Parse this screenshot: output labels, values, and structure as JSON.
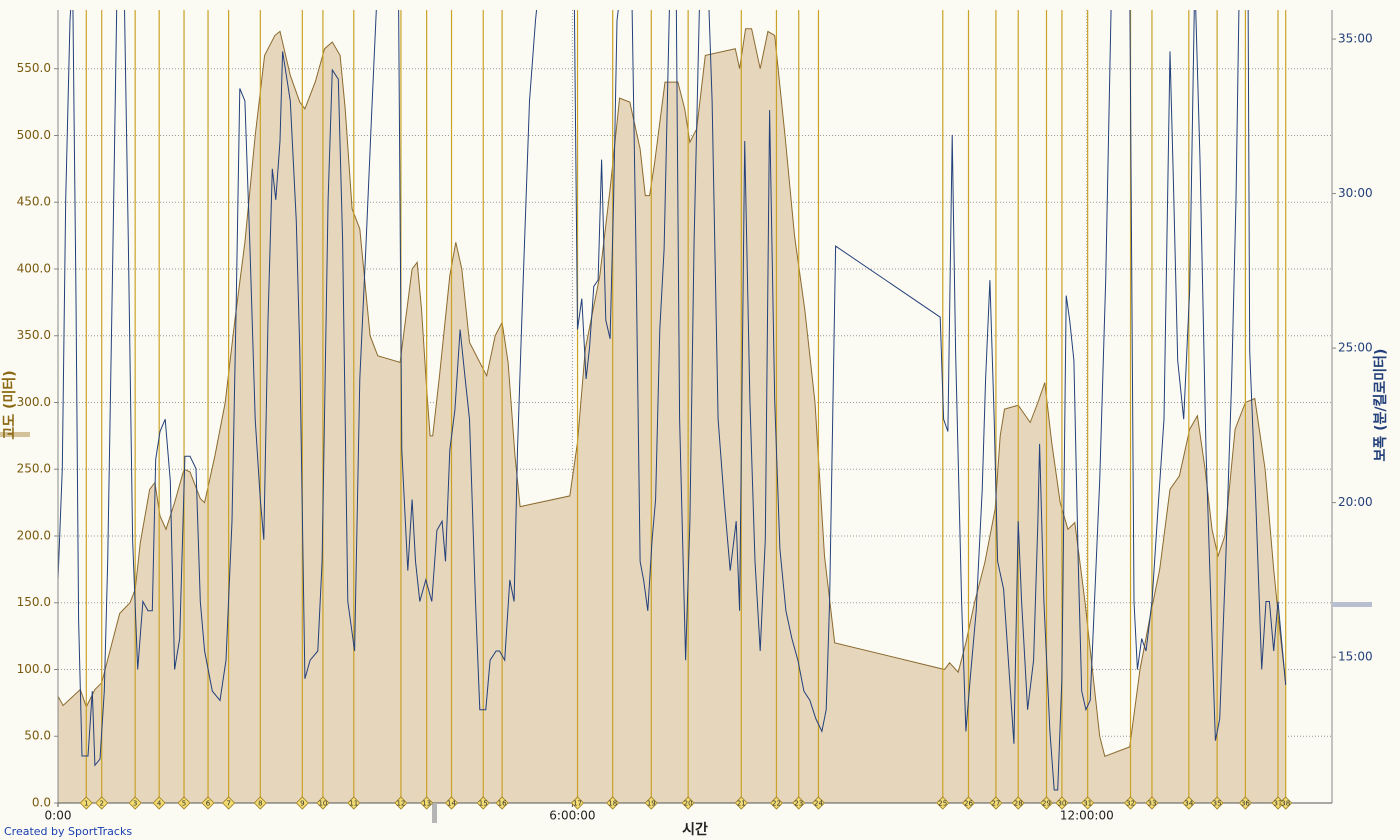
{
  "chart_data": {
    "type": "area",
    "xlabel": "시간",
    "ylabel": "고도 (미터)",
    "y2label": "보폭 (분/킬로미터)",
    "footer": "Created by SportTracks",
    "grid": true,
    "xlim": [
      0,
      14.86
    ],
    "xticks": [
      {
        "value": 0,
        "label": "0:00"
      },
      {
        "value": 6,
        "label": "6:00:00"
      },
      {
        "value": 12,
        "label": "12:00:00"
      }
    ],
    "ylim": [
      0,
      594
    ],
    "yticks": [
      {
        "value": 0,
        "label": "0.0"
      },
      {
        "value": 50,
        "label": "50.0"
      },
      {
        "value": 100,
        "label": "100.0"
      },
      {
        "value": 150,
        "label": "150.0"
      },
      {
        "value": 200,
        "label": "200.0"
      },
      {
        "value": 250,
        "label": "250.0"
      },
      {
        "value": 300,
        "label": "300.0"
      },
      {
        "value": 350,
        "label": "350.0"
      },
      {
        "value": 400,
        "label": "400.0"
      },
      {
        "value": 450,
        "label": "450.0"
      },
      {
        "value": 500,
        "label": "500.0"
      },
      {
        "value": 550,
        "label": "550.0"
      }
    ],
    "y2lim": [
      10.28,
      35.94
    ],
    "y2ticks": [
      {
        "value": 15,
        "label": "15:00"
      },
      {
        "value": 20,
        "label": "20:00"
      },
      {
        "value": 25,
        "label": "25:00"
      },
      {
        "value": 30,
        "label": "30:00"
      },
      {
        "value": 35,
        "label": "35:00"
      }
    ],
    "series": [
      {
        "type": "area",
        "color": "#8b6a2e",
        "fill": "#e6d6bc",
        "x": [
          0,
          0.06,
          0.26,
          0.33,
          0.43,
          0.51,
          0.61,
          0.72,
          0.84,
          0.9,
          0.96,
          1.07,
          1.13,
          1.19,
          1.26,
          1.36,
          1.47,
          1.54,
          1.66,
          1.71,
          1.83,
          1.95,
          2.06,
          2.18,
          2.3,
          2.41,
          2.53,
          2.59,
          2.71,
          2.82,
          2.88,
          3.0,
          3.11,
          3.2,
          3.29,
          3.35,
          3.43,
          3.52,
          3.64,
          3.73,
          3.99,
          4.05,
          4.13,
          4.19,
          4.24,
          4.3,
          4.34,
          4.37,
          4.45,
          4.57,
          4.64,
          4.71,
          4.8,
          4.92,
          5.0,
          5.1,
          5.18,
          5.25,
          5.33,
          5.39,
          5.97,
          6.06,
          6.15,
          6.32,
          6.44,
          6.55,
          6.67,
          6.79,
          6.85,
          6.9,
          6.96,
          7.08,
          7.23,
          7.31,
          7.37,
          7.45,
          7.55,
          7.9,
          7.95,
          8.02,
          8.09,
          8.19,
          8.28,
          8.36,
          8.48,
          8.59,
          8.71,
          8.83,
          8.94,
          9.06,
          10.34,
          10.4,
          10.5,
          10.59,
          10.69,
          10.81,
          10.93,
          10.99,
          11.04,
          11.2,
          11.34,
          11.43,
          11.51,
          11.59,
          11.69,
          11.78,
          11.86,
          11.98,
          12.15,
          12.21,
          12.5,
          12.62,
          12.74,
          12.85,
          12.97,
          13.08,
          13.2,
          13.29,
          13.38,
          13.46,
          13.53,
          13.61,
          13.73,
          13.85,
          13.96,
          14.08,
          14.18,
          14.25,
          14.32
        ],
        "values": [
          80,
          73,
          85,
          72,
          85,
          90,
          115,
          142,
          150,
          160,
          195,
          235,
          240,
          215,
          205,
          225,
          250,
          248,
          228,
          225,
          260,
          300,
          360,
          420,
          500,
          560,
          575,
          578,
          545,
          525,
          520,
          540,
          565,
          570,
          560,
          520,
          445,
          430,
          350,
          335,
          330,
          360,
          400,
          405,
          370,
          310,
          275,
          275,
          320,
          395,
          420,
          400,
          345,
          330,
          320,
          350,
          360,
          330,
          260,
          222,
          230,
          270,
          340,
          395,
          460,
          528,
          525,
          490,
          455,
          455,
          480,
          540,
          540,
          520,
          495,
          505,
          560,
          565,
          550,
          580,
          580,
          550,
          578,
          575,
          500,
          425,
          370,
          300,
          185,
          120,
          100,
          105,
          98,
          120,
          150,
          180,
          220,
          275,
          295,
          298,
          285,
          300,
          315,
          270,
          225,
          205,
          210,
          150,
          50,
          35,
          42,
          100,
          140,
          175,
          235,
          245,
          280,
          290,
          250,
          205,
          185,
          200,
          280,
          300,
          303,
          250,
          175,
          130,
          90
        ]
      },
      {
        "type": "line",
        "axis": "y2",
        "color": "#23407a",
        "x": [
          0,
          0.05,
          0.09,
          0.14,
          0.17,
          0.21,
          0.24,
          0.28,
          0.35,
          0.4,
          0.43,
          0.49,
          0.54,
          0.58,
          0.64,
          0.69,
          0.77,
          0.82,
          0.87,
          0.93,
          0.99,
          1.05,
          1.1,
          1.14,
          1.19,
          1.25,
          1.31,
          1.36,
          1.42,
          1.48,
          1.54,
          1.61,
          1.66,
          1.71,
          1.8,
          1.89,
          1.96,
          2.03,
          2.08,
          2.12,
          2.18,
          2.24,
          2.3,
          2.36,
          2.4,
          2.45,
          2.5,
          2.54,
          2.59,
          2.62,
          2.71,
          2.78,
          2.82,
          2.88,
          2.94,
          3.03,
          3.08,
          3.15,
          3.2,
          3.27,
          3.32,
          3.38,
          3.46,
          3.52,
          3.59,
          3.66,
          3.73,
          3.97,
          4.01,
          4.08,
          4.13,
          4.17,
          4.22,
          4.29,
          4.36,
          4.42,
          4.48,
          4.52,
          4.57,
          4.63,
          4.69,
          4.75,
          4.8,
          4.87,
          4.92,
          4.99,
          5.04,
          5.11,
          5.15,
          5.21,
          5.27,
          5.32,
          5.36,
          5.41,
          5.5,
          5.57,
          5.62,
          6.02,
          6.06,
          6.11,
          6.16,
          6.2,
          6.25,
          6.3,
          6.34,
          6.39,
          6.44,
          6.48,
          6.52,
          6.58,
          6.69,
          6.74,
          6.79,
          6.83,
          6.88,
          6.93,
          6.97,
          7.02,
          7.07,
          7.14,
          7.21,
          7.25,
          7.32,
          7.37,
          7.42,
          7.49,
          7.58,
          7.63,
          7.7,
          7.77,
          7.84,
          7.91,
          7.95,
          8.01,
          8.07,
          8.13,
          8.19,
          8.25,
          8.3,
          8.36,
          8.42,
          8.49,
          8.56,
          8.63,
          8.7,
          8.77,
          8.84,
          8.91,
          8.96,
          9.0,
          9.07,
          10.29,
          10.33,
          10.38,
          10.43,
          10.47,
          10.54,
          10.59,
          10.64,
          10.71,
          10.78,
          10.82,
          10.87,
          10.92,
          10.96,
          11.03,
          11.1,
          11.15,
          11.2,
          11.24,
          11.31,
          11.38,
          11.43,
          11.45,
          11.5,
          11.57,
          11.62,
          11.66,
          11.71,
          11.76,
          11.8,
          11.85,
          11.9,
          11.94,
          11.99,
          12.04,
          12.08,
          12.15,
          12.22,
          12.29,
          12.5,
          12.55,
          12.59,
          12.64,
          12.69,
          12.76,
          12.83,
          12.9,
          12.97,
          13.01,
          13.06,
          13.13,
          13.2,
          13.26,
          13.32,
          13.39,
          13.46,
          13.5,
          13.55,
          13.62,
          13.69,
          13.74,
          13.78,
          13.88,
          13.9,
          13.97,
          14.04,
          14.09,
          14.13,
          14.18,
          14.23,
          14.27,
          14.32
        ],
        "values": [
          17.5,
          21.1,
          29.8,
          35.6,
          37,
          26.6,
          16.2,
          11.8,
          11.8,
          13.9,
          11.5,
          11.7,
          13.9,
          18.1,
          28.2,
          37,
          37,
          28.5,
          18.8,
          14.6,
          16.8,
          16.5,
          16.5,
          21.4,
          22.3,
          22.7,
          20.7,
          14.6,
          15.6,
          21.5,
          21.5,
          21.1,
          16.8,
          15.2,
          13.9,
          13.6,
          14.9,
          19.4,
          26.6,
          33.4,
          33.0,
          28.2,
          22.7,
          20.1,
          18.8,
          25.9,
          30.8,
          29.8,
          31.7,
          34.6,
          33.0,
          29.1,
          24.9,
          14.3,
          14.9,
          15.2,
          18.1,
          29.8,
          34.0,
          33.7,
          28.5,
          16.8,
          15.2,
          24.0,
          28.2,
          32.7,
          37,
          37,
          21.7,
          17.8,
          20.1,
          18.1,
          16.8,
          17.5,
          16.8,
          19.1,
          19.4,
          18.1,
          21.7,
          23.0,
          25.6,
          24.0,
          22.7,
          16.8,
          13.3,
          13.3,
          14.9,
          15.2,
          15.2,
          14.9,
          17.5,
          16.8,
          21.7,
          25.9,
          33.0,
          35.6,
          37,
          37,
          25.6,
          26.6,
          24.0,
          25.0,
          27.0,
          27.2,
          31.1,
          25.9,
          25.3,
          29.8,
          35.6,
          37,
          37,
          28.5,
          18.1,
          17.5,
          16.5,
          18.8,
          20.1,
          25.6,
          28.2,
          37,
          37,
          22.7,
          14.9,
          19.4,
          28.5,
          37,
          37,
          33.0,
          22.7,
          20.1,
          17.8,
          19.4,
          16.5,
          31.7,
          23.3,
          18.1,
          15.2,
          18.8,
          32.7,
          23.3,
          18.5,
          16.5,
          15.6,
          14.9,
          13.9,
          13.6,
          13.0,
          12.6,
          13.3,
          16.8,
          28.3,
          26.0,
          22.7,
          22.3,
          31.9,
          24.9,
          16.8,
          12.6,
          14.3,
          16.5,
          20.4,
          24.0,
          27.2,
          22.7,
          18.1,
          17.2,
          14.3,
          12.2,
          19.4,
          16.8,
          13.3,
          14.9,
          19.4,
          21.9,
          16.8,
          12.6,
          10.7,
          10.7,
          14.3,
          26.7,
          25.9,
          24.6,
          18.1,
          13.9,
          13.3,
          13.6,
          16.2,
          20.7,
          27.2,
          37,
          37,
          16.8,
          14.6,
          15.6,
          15.2,
          16.8,
          19.8,
          22.7,
          34.6,
          30.4,
          24.6,
          22.7,
          26.9,
          37,
          31.1,
          21.7,
          15.6,
          12.3,
          13.0,
          18.1,
          24.0,
          29.8,
          37,
          37,
          24.9,
          20.1,
          14.6,
          16.8,
          16.8,
          15.2,
          16.8,
          15.6,
          14.1
        ]
      }
    ],
    "markers": {
      "color": "#c9a227",
      "labels": [
        "1",
        "2",
        "3",
        "4",
        "5",
        "6",
        "7",
        "8",
        "9",
        "10",
        "11",
        "12",
        "13",
        "14",
        "15",
        "16",
        "17",
        "18",
        "19",
        "20",
        "21",
        "22",
        "23",
        "24",
        "25",
        "26",
        "27",
        "28",
        "29",
        "30",
        "31",
        "32",
        "33",
        "34",
        "35",
        "36",
        "37",
        "38"
      ],
      "x": [
        0.33,
        0.51,
        0.9,
        1.18,
        1.47,
        1.75,
        1.99,
        2.36,
        2.85,
        3.09,
        3.45,
        4.0,
        4.3,
        4.59,
        4.96,
        5.18,
        6.06,
        6.47,
        6.92,
        7.35,
        7.97,
        8.38,
        8.64,
        8.87,
        10.32,
        10.62,
        10.94,
        11.2,
        11.53,
        11.71,
        12.01,
        12.51,
        12.76,
        13.19,
        13.52,
        13.85,
        14.23,
        14.32
      ]
    }
  }
}
